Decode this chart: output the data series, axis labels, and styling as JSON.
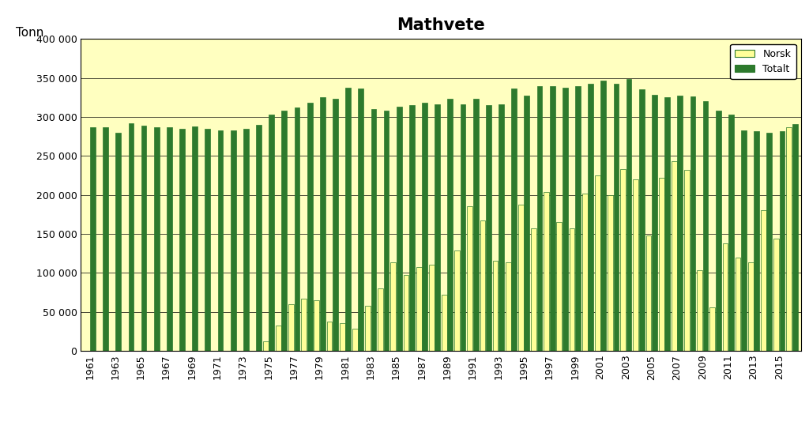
{
  "title": "Mathvete",
  "ylabel_text": "Tonn",
  "background_color": "#FFFFC0",
  "plot_bg_color": "#FFFFC0",
  "bar_color_norsk": "#FFFF99",
  "bar_color_totalt": "#2D7A2D",
  "bar_edge_color": "#2D7A2D",
  "norsk_edge_color": "#2D7A2D",
  "years": [
    1961,
    1962,
    1963,
    1964,
    1965,
    1966,
    1967,
    1968,
    1969,
    1970,
    1971,
    1972,
    1973,
    1974,
    1975,
    1976,
    1977,
    1978,
    1979,
    1980,
    1981,
    1982,
    1983,
    1984,
    1985,
    1986,
    1987,
    1988,
    1989,
    1990,
    1991,
    1992,
    1993,
    1994,
    1995,
    1996,
    1997,
    1998,
    1999,
    2000,
    2001,
    2002,
    2003,
    2004,
    2005,
    2006,
    2007,
    2008,
    2009,
    2010,
    2011,
    2012,
    2013,
    2014,
    2015,
    2016
  ],
  "totalt": [
    287100,
    286600,
    280000,
    292000,
    289000,
    287000,
    287000,
    285000,
    288000,
    285000,
    283000,
    283000,
    285000,
    290000,
    303000,
    308000,
    312000,
    318000,
    325000,
    323000,
    337000,
    336000,
    310000,
    308000,
    313000,
    315000,
    318000,
    316000,
    323000,
    316000,
    323000,
    315000,
    316000,
    336000,
    327000,
    339000,
    339000,
    337000,
    340000,
    343000,
    347000,
    343000,
    349000,
    335000,
    328000,
    325000,
    327000,
    326000,
    320000,
    308000,
    303000,
    283000,
    282000,
    280000,
    282000,
    291000
  ],
  "norsk": [
    287,
    287,
    287,
    287,
    287,
    287,
    287,
    287,
    287,
    287,
    287,
    287,
    287,
    287,
    12000,
    32000,
    60000,
    67000,
    65000,
    37000,
    35000,
    28000,
    58000,
    80000,
    113000,
    97000,
    107000,
    110000,
    72000,
    129000,
    185000,
    167000,
    115000,
    113000,
    187000,
    157000,
    204000,
    165000,
    157000,
    202000,
    225000,
    200000,
    233000,
    220000,
    148000,
    222000,
    243000,
    232000,
    103000,
    56000,
    138000,
    120000,
    113000,
    180000,
    144000,
    287000
  ],
  "ylim": [
    0,
    400000
  ],
  "yticks": [
    0,
    50000,
    100000,
    150000,
    200000,
    250000,
    300000,
    350000,
    400000
  ],
  "ytick_labels": [
    "0",
    "50 000",
    "100 000",
    "150 000",
    "200 000",
    "250 000",
    "300 000",
    "350 000",
    "400 000"
  ],
  "legend_labels": [
    "Norsk",
    "Totalt"
  ],
  "title_fontsize": 15,
  "label_fontsize": 11,
  "tick_fontsize": 9
}
